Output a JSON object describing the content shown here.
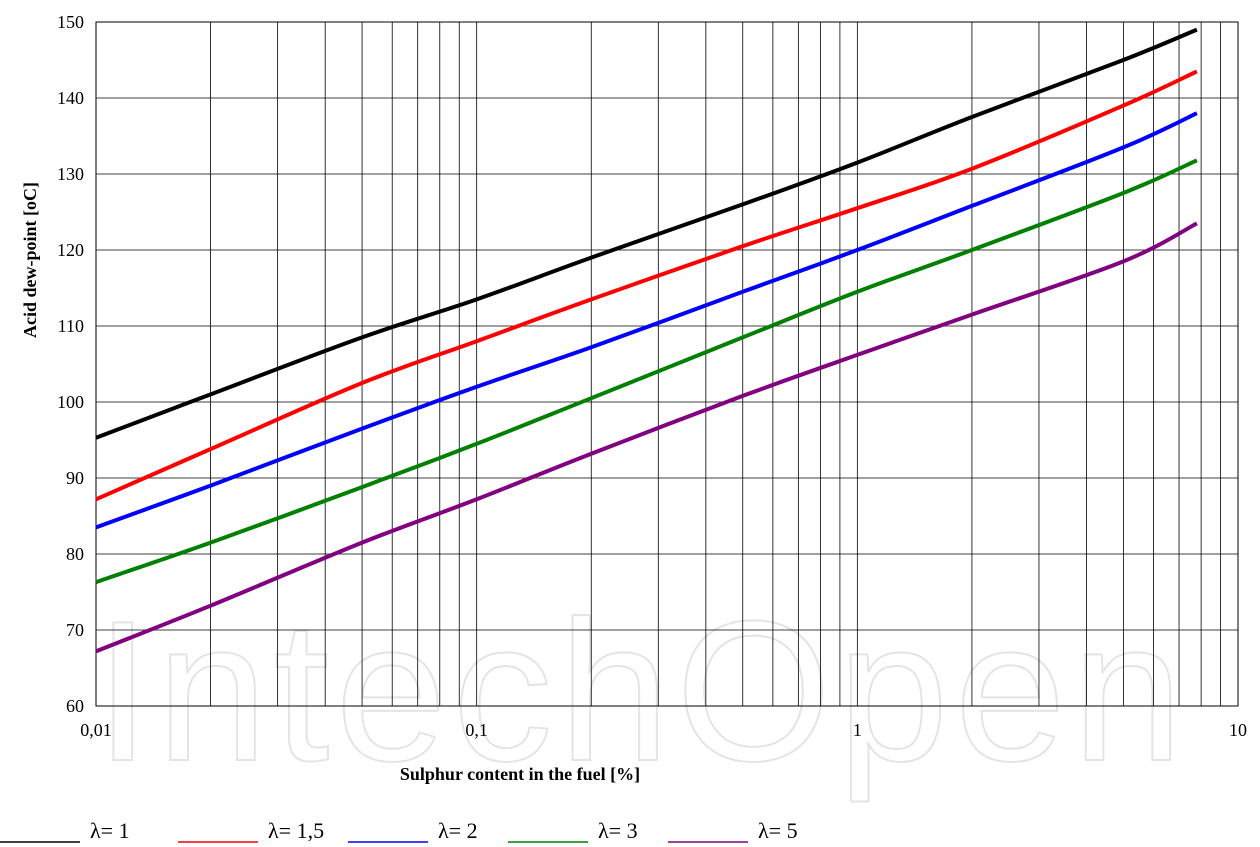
{
  "watermark": {
    "text": "IntechOpen"
  },
  "chart_data": {
    "type": "line",
    "title": "",
    "xlabel": "Sulphur  content  in the fuel  [%]",
    "ylabel": "Acid dew-point  [oC]",
    "x_scale": "log",
    "xlim": [
      0.01,
      10
    ],
    "ylim": [
      60,
      150
    ],
    "x_ticks": [
      0.01,
      0.1,
      1,
      10
    ],
    "x_tick_labels": [
      "0,01",
      "0,1",
      "1",
      "10"
    ],
    "y_ticks": [
      60,
      70,
      80,
      90,
      100,
      110,
      120,
      130,
      140,
      150
    ],
    "y_tick_labels": [
      "60",
      "70",
      "80",
      "90",
      "100",
      "110",
      "120",
      "130",
      "140",
      "150"
    ],
    "grid": true,
    "legend_position": "bottom",
    "series": [
      {
        "name": "λ= 1",
        "color": "#000000",
        "x": [
          0.01,
          0.02,
          0.05,
          0.1,
          0.2,
          0.5,
          1,
          2,
          5,
          7.8
        ],
        "y": [
          95.3,
          101,
          108.5,
          113.5,
          119,
          126,
          131.5,
          137.5,
          145,
          149
        ]
      },
      {
        "name": "λ= 1,5",
        "color": "#ff0000",
        "x": [
          0.01,
          0.02,
          0.05,
          0.1,
          0.2,
          0.5,
          1,
          2,
          5,
          7.8
        ],
        "y": [
          87.2,
          93.8,
          102.5,
          108,
          113.5,
          120.5,
          125.5,
          130.7,
          139,
          143.5
        ]
      },
      {
        "name": "λ= 2",
        "color": "#0000ff",
        "x": [
          0.01,
          0.02,
          0.05,
          0.1,
          0.2,
          0.5,
          1,
          2,
          5,
          7.8
        ],
        "y": [
          83.5,
          89,
          96.5,
          102,
          107.2,
          114.5,
          120,
          125.8,
          133.5,
          138
        ]
      },
      {
        "name": "λ= 3",
        "color": "#008000",
        "x": [
          0.01,
          0.02,
          0.05,
          0.1,
          0.2,
          0.5,
          1,
          2,
          5,
          7.8
        ],
        "y": [
          76.3,
          81.5,
          88.8,
          94.5,
          100.5,
          108.5,
          114.5,
          120,
          127.5,
          131.8
        ]
      },
      {
        "name": "λ= 5",
        "color": "#800080",
        "x": [
          0.01,
          0.02,
          0.05,
          0.1,
          0.2,
          0.5,
          1,
          2,
          5,
          7.8
        ],
        "y": [
          67.2,
          73.2,
          81.5,
          87.2,
          93.2,
          100.8,
          106.2,
          111.5,
          118.5,
          123.5
        ]
      }
    ]
  }
}
